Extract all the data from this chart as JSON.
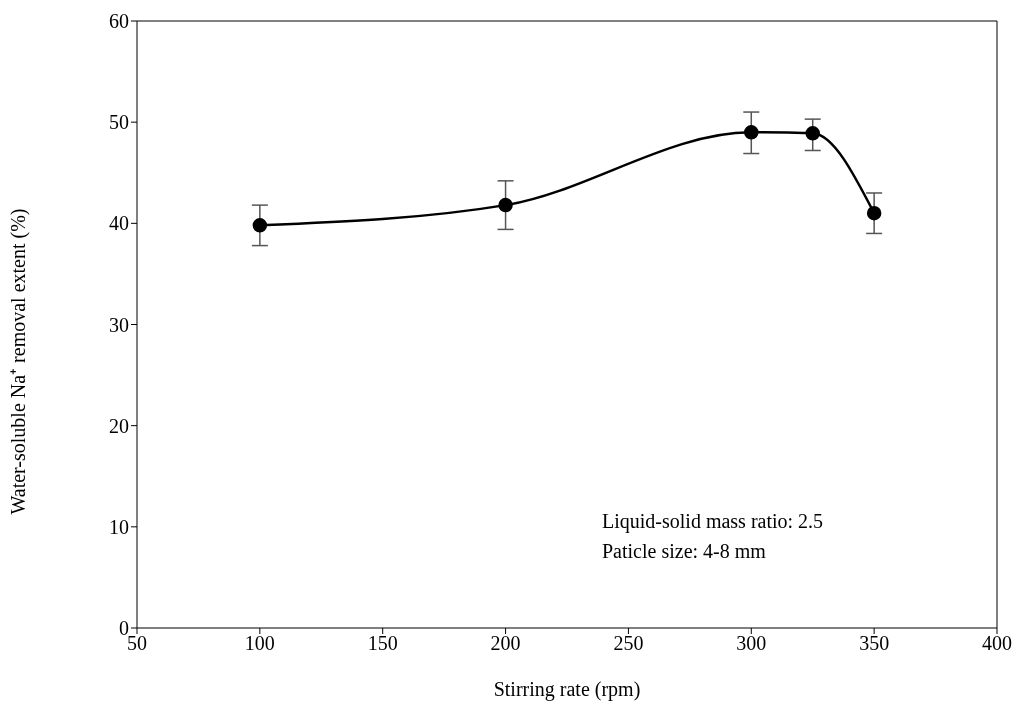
{
  "chart_data": {
    "type": "line",
    "xlabel": "Stirring rate (rpm)",
    "ylabel": "Water-soluble Na⁺ removal extent (%)",
    "x": [
      100,
      200,
      300,
      325,
      350
    ],
    "series": [
      {
        "color": "#000000",
        "values": [
          39.8,
          41.8,
          49.0,
          48.9,
          41.0
        ],
        "errors": [
          [
            37.8,
            41.8
          ],
          [
            39.4,
            44.2
          ],
          [
            46.9,
            51.0
          ],
          [
            47.2,
            50.3
          ],
          [
            39.0,
            43.0
          ]
        ]
      }
    ],
    "xlim": [
      50,
      400
    ],
    "xticks": [
      50,
      100,
      150,
      200,
      250,
      300,
      350,
      400
    ],
    "ylim": [
      0,
      60
    ],
    "yticks": [
      0,
      10,
      20,
      30,
      40,
      50,
      60
    ],
    "marker": "circle",
    "line_style": "solid",
    "annotations": [
      "Liquid-solid mass ratio: 2.5",
      "Paticle size: 4-8 mm"
    ]
  }
}
